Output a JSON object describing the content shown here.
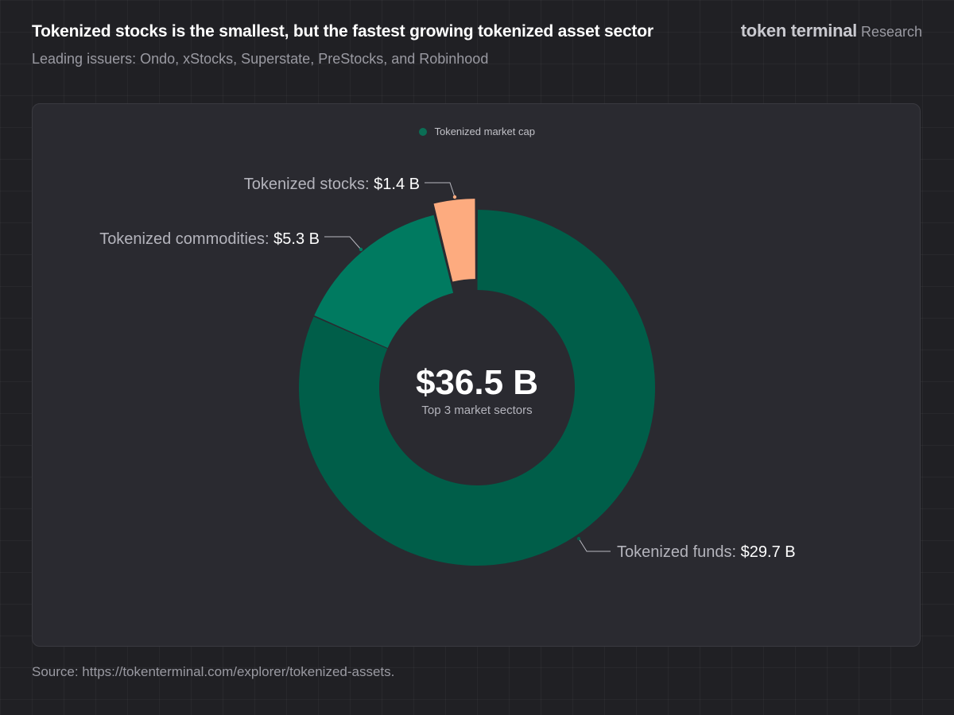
{
  "header": {
    "title": "Tokenized stocks is the smallest, but the fastest growing tokenized asset sector",
    "subtitle": "Leading issuers: Ondo, xStocks, Superstate, PreStocks, and Robinhood",
    "brand_name": "token terminal",
    "brand_sub": "Research"
  },
  "legend": {
    "label": "Tokenized market cap"
  },
  "source": "Source: https://tokenterminal.com/explorer/tokenized-assets.",
  "colors": {
    "funds": "#005e49",
    "commodities": "#007a60",
    "stocks": "#fdab7f",
    "background": "#202024",
    "panel": "#2a2a30"
  },
  "chart_data": {
    "type": "pie",
    "variant": "donut",
    "legend": [
      "Tokenized market cap"
    ],
    "center_value": "$36.5 B",
    "center_label": "Top 3 market sectors",
    "slices": [
      {
        "name": "Tokenized funds",
        "value": 29.7,
        "value_label": "$29.7 B",
        "color": "#005e49"
      },
      {
        "name": "Tokenized commodities",
        "value": 5.3,
        "value_label": "$5.3 B",
        "color": "#007a60"
      },
      {
        "name": "Tokenized stocks",
        "value": 1.4,
        "value_label": "$1.4 B",
        "color": "#fdab7f",
        "exploded": true
      }
    ]
  }
}
